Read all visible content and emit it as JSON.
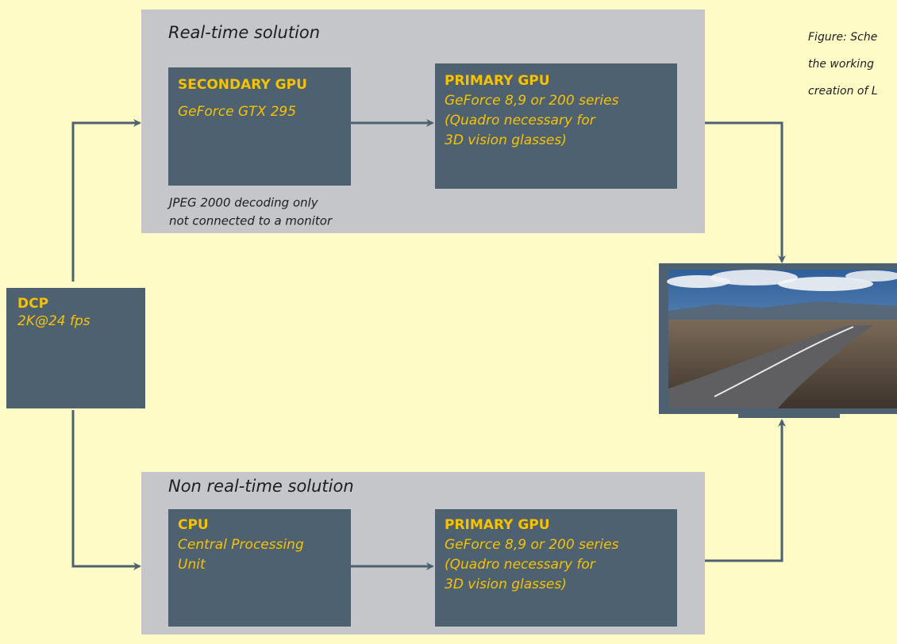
{
  "panels": [
    {
      "title": "Real-time solution"
    },
    {
      "title": "Non real-time solution"
    }
  ],
  "nodes": [
    {
      "title": "SECONDARY GPU",
      "lines": [
        "GeForce GTX 295"
      ]
    },
    {
      "title": "PRIMARY GPU",
      "lines": [
        "GeForce 8,9 or 200 series",
        "(Quadro necessary for",
        "3D vision glasses)"
      ]
    },
    {
      "title": "CPU",
      "lines": [
        "Central Processing",
        "Unit"
      ]
    },
    {
      "title": "PRIMARY GPU",
      "lines": [
        "GeForce 8,9 or 200 series",
        "(Quadro necessary for",
        "3D vision glasses)"
      ]
    },
    {
      "title": "DCP",
      "lines": [
        "2K@24 fps"
      ]
    }
  ],
  "notes": [
    "JPEG 2000 decoding only",
    "not connected to a monitor"
  ],
  "caption": [
    "Figure: Sche",
    "the working",
    "creation of L"
  ]
}
